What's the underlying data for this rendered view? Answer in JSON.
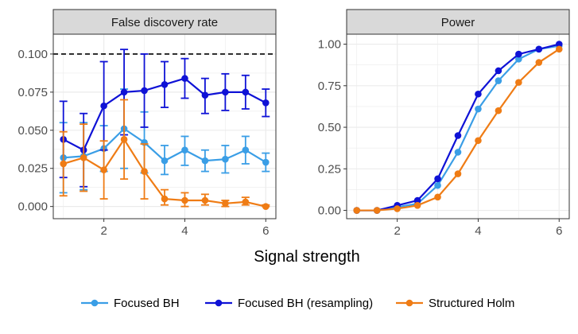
{
  "figure": {
    "xlabel": "Signal strength",
    "legend_position": "bottom",
    "colors": {
      "focused_bh": "#3a9ee6",
      "focused_bh_resampling": "#0f12d6",
      "structured_holm": "#ef7c15",
      "strip_bg": "#d9d9d9",
      "grid": "#ebebeb",
      "panel_border": "#333333",
      "reference_line": "#000000"
    }
  },
  "chart_data": [
    {
      "type": "line",
      "title": "False discovery rate",
      "xlabel": "Signal strength",
      "ylabel": "",
      "xlim": [
        0.75,
        6.25
      ],
      "ylim": [
        -0.008,
        0.113
      ],
      "x_ticks": [
        2,
        4,
        6
      ],
      "y_ticks": [
        0.0,
        0.025,
        0.05,
        0.075,
        0.1
      ],
      "y_tick_labels": [
        "0.000",
        "0.025",
        "0.050",
        "0.075",
        "0.100"
      ],
      "grid": true,
      "reference_line": {
        "y": 0.1,
        "style": "dashed"
      },
      "x": [
        1,
        1.5,
        2,
        2.5,
        3,
        3.5,
        4,
        4.5,
        5,
        5.5,
        6
      ],
      "series": [
        {
          "name": "Focused BH",
          "color": "#3a9ee6",
          "values": [
            0.032,
            0.033,
            0.038,
            0.051,
            0.042,
            0.03,
            0.037,
            0.03,
            0.031,
            0.037,
            0.029
          ],
          "lower": [
            0.009,
            0.011,
            0.023,
            0.025,
            0.022,
            0.021,
            0.027,
            0.023,
            0.022,
            0.028,
            0.023
          ],
          "upper": [
            0.055,
            0.055,
            0.053,
            0.077,
            0.062,
            0.04,
            0.046,
            0.037,
            0.04,
            0.046,
            0.035
          ]
        },
        {
          "name": "Focused BH (resampling)",
          "color": "#0f12d6",
          "values": [
            0.044,
            0.037,
            0.066,
            0.075,
            0.076,
            0.08,
            0.084,
            0.073,
            0.075,
            0.075,
            0.068
          ],
          "lower": [
            0.019,
            0.013,
            0.037,
            0.047,
            0.052,
            0.065,
            0.071,
            0.061,
            0.063,
            0.064,
            0.059
          ],
          "upper": [
            0.069,
            0.061,
            0.095,
            0.103,
            0.1,
            0.095,
            0.097,
            0.084,
            0.087,
            0.086,
            0.077
          ]
        },
        {
          "name": "Structured Holm",
          "color": "#ef7c15",
          "values": [
            0.028,
            0.032,
            0.024,
            0.044,
            0.023,
            0.005,
            0.004,
            0.004,
            0.002,
            0.003,
            0.0
          ],
          "lower": [
            0.007,
            0.01,
            0.005,
            0.018,
            0.005,
            0.001,
            0.0,
            0.001,
            0.0,
            0.001,
            0.0
          ],
          "upper": [
            0.049,
            0.054,
            0.043,
            0.07,
            0.041,
            0.011,
            0.009,
            0.008,
            0.004,
            0.006,
            0.001
          ]
        }
      ]
    },
    {
      "type": "line",
      "title": "Power",
      "xlabel": "Signal strength",
      "ylabel": "",
      "xlim": [
        0.75,
        6.25
      ],
      "ylim": [
        -0.05,
        1.06
      ],
      "x_ticks": [
        2,
        4,
        6
      ],
      "y_ticks": [
        0.0,
        0.25,
        0.5,
        0.75,
        1.0
      ],
      "y_tick_labels": [
        "0.00",
        "0.25",
        "0.50",
        "0.75",
        "1.00"
      ],
      "grid": true,
      "x": [
        1,
        1.5,
        2,
        2.5,
        3,
        3.5,
        4,
        4.5,
        5,
        5.5,
        6
      ],
      "series": [
        {
          "name": "Focused BH",
          "color": "#3a9ee6",
          "values": [
            0.0,
            0.0,
            0.02,
            0.04,
            0.15,
            0.35,
            0.61,
            0.78,
            0.91,
            0.97,
            0.99
          ]
        },
        {
          "name": "Focused BH (resampling)",
          "color": "#0f12d6",
          "values": [
            0.0,
            0.0,
            0.03,
            0.06,
            0.19,
            0.45,
            0.7,
            0.84,
            0.94,
            0.97,
            1.0
          ]
        },
        {
          "name": "Structured Holm",
          "color": "#ef7c15",
          "values": [
            0.0,
            0.0,
            0.01,
            0.03,
            0.08,
            0.22,
            0.42,
            0.6,
            0.77,
            0.89,
            0.97
          ]
        }
      ]
    }
  ]
}
